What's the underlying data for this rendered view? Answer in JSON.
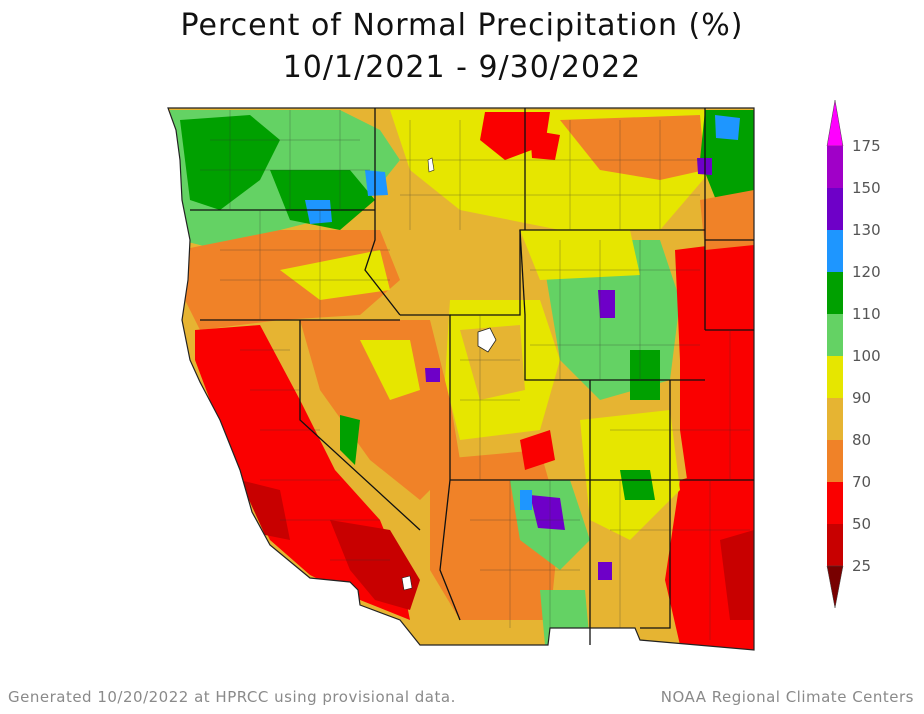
{
  "title": {
    "line1": "Percent of Normal Precipitation (%)",
    "line2": "10/1/2021 - 9/30/2022"
  },
  "legend": {
    "labels": [
      "175",
      "150",
      "130",
      "120",
      "110",
      "100",
      "90",
      "80",
      "70",
      "50",
      "25"
    ],
    "colors": {
      "gt175": "#ff00ff",
      "150_175": "#a000c8",
      "130_150": "#6e00c8",
      "120_130": "#1e96ff",
      "110_120": "#00a000",
      "100_110": "#64d264",
      "90_100": "#e6e600",
      "80_90": "#e6b432",
      "70_80": "#f08228",
      "50_70": "#fa0000",
      "25_50": "#c80000",
      "lt25": "#780000"
    }
  },
  "map": {
    "region": "Western United States",
    "colors": {
      "red": "#fa0000",
      "darkred": "#c80000",
      "orange": "#f08228",
      "tan": "#e6b432",
      "yellow": "#e6e600",
      "lightgreen": "#64d264",
      "green": "#00a000",
      "blue": "#1e96ff",
      "purple": "#6e00c8",
      "magenta": "#a000c8",
      "boundary": "#222222"
    }
  },
  "footer": {
    "left": "Generated 10/20/2022 at HPRCC using provisional data.",
    "right": "NOAA Regional Climate Centers"
  }
}
